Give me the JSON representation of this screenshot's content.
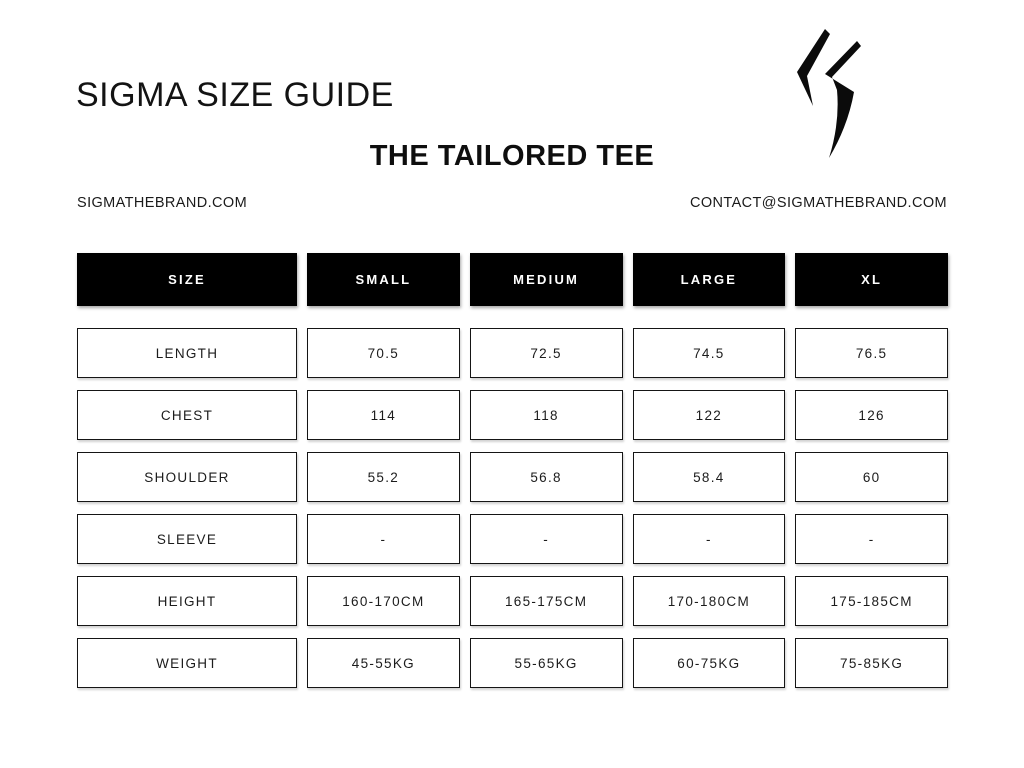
{
  "page": {
    "title": "SIGMA SIZE GUIDE",
    "subtitle": "THE TAILORED TEE",
    "website": "SIGMATHEBRAND.COM",
    "contact": "CONTACT@SIGMATHEBRAND.COM"
  },
  "colors": {
    "page_bg": "#ffffff",
    "header_bg": "#000000",
    "header_text": "#ffffff",
    "body_text": "#141414",
    "cell_border": "#151515"
  },
  "logo": {
    "name": "sigma-s-logo"
  },
  "size_table": {
    "columns": [
      "SIZE",
      "SMALL",
      "MEDIUM",
      "LARGE",
      "XL"
    ],
    "rows": [
      {
        "label": "LENGTH",
        "values": [
          "70.5",
          "72.5",
          "74.5",
          "76.5"
        ]
      },
      {
        "label": "CHEST",
        "values": [
          "114",
          "118",
          "122",
          "126"
        ]
      },
      {
        "label": "SHOULDER",
        "values": [
          "55.2",
          "56.8",
          "58.4",
          "60"
        ]
      },
      {
        "label": "SLEEVE",
        "values": [
          "-",
          "-",
          "-",
          "-"
        ]
      },
      {
        "label": "HEIGHT",
        "values": [
          "160-170CM",
          "165-175CM",
          "170-180CM",
          "175-185CM"
        ]
      },
      {
        "label": "WEIGHT",
        "values": [
          "45-55KG",
          "55-65KG",
          "60-75KG",
          "75-85KG"
        ]
      }
    ]
  }
}
